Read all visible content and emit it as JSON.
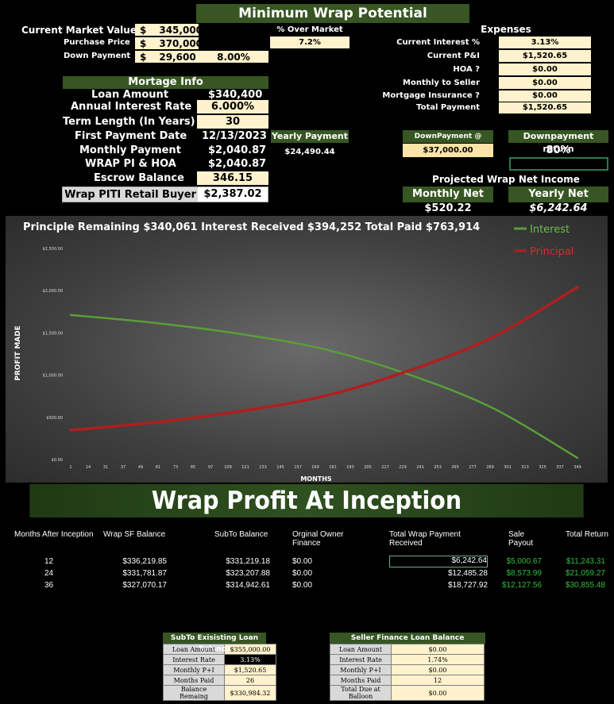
{
  "title": "Minimum Wrap Potential",
  "top": {
    "rows": [
      {
        "label": "Current Market Value",
        "cur": "$",
        "value": "345,000"
      },
      {
        "label": "Purchase Price",
        "cur": "$",
        "value": "370,000"
      },
      {
        "label": "Down Payment",
        "cur": "$",
        "value": "29,600",
        "extra": "8.00%"
      }
    ],
    "over_market_label": "% Over Market",
    "over_market_value": "7.2%"
  },
  "expenses": {
    "title": "Expenses",
    "rows": [
      {
        "label": "Current Interest %",
        "value": "3.13%"
      },
      {
        "label": "Current P&I",
        "value": "$1,520.65"
      },
      {
        "label": "HOA ?",
        "value": "$0.00"
      },
      {
        "label": "Monthly to Seller",
        "value": "$0.00"
      },
      {
        "label": "Mortgage Insurance ?",
        "value": "$0.00"
      },
      {
        "label": "Total Payment",
        "value": "$1,520.65"
      }
    ]
  },
  "mortgage": {
    "title": "Mortage Info",
    "rows": [
      {
        "label": "Loan Amount",
        "value": "$340,400"
      },
      {
        "label": "Annual Interest Rate",
        "value": "6.000%"
      },
      {
        "label": "Term Length (In Years)",
        "value": "30"
      },
      {
        "label": "First Payment Date",
        "value": "12/13/2023"
      },
      {
        "label": "Monthly Payment",
        "value": "$2,040.87"
      },
      {
        "label": "WRAP PI & HOA",
        "value": "$2,040.87"
      },
      {
        "label": "Escrow Balance",
        "value": "346.15"
      },
      {
        "label": "Wrap PITI Retail Buyer",
        "value": "$2,387.02"
      }
    ],
    "yearly_payment_label": "Yearly Payment",
    "yearly_payment_value": "$24,490.44"
  },
  "downpayment": {
    "closing_label": "DownPayment @ Closing",
    "closing_value": "$37,000.00",
    "return_label": "Downpayment return",
    "return_value": "80%"
  },
  "projected": {
    "title": "Projected Wrap Net Income",
    "monthly_label": "Monthly Net",
    "monthly_value": "$520.22",
    "yearly_label": "Yearly Net",
    "yearly_value": "$6,242.64"
  },
  "chart_data": {
    "type": "line",
    "title": "Principle Remaining $340,061 Interest Received $394,252 Total Paid $763,914",
    "xlabel": "MONTHS",
    "ylabel": "PROFIT MADE",
    "x_ticks": [
      "1",
      "14",
      "31",
      "37",
      "49",
      "61",
      "73",
      "85",
      "97",
      "109",
      "121",
      "133",
      "145",
      "157",
      "169",
      "181",
      "193",
      "205",
      "217",
      "229",
      "241",
      "253",
      "265",
      "277",
      "289",
      "301",
      "313",
      "325",
      "337",
      "349"
    ],
    "y_ticks": [
      "$0.00",
      "$500.00",
      "$1,000.00",
      "$1,500.00",
      "$2,000.00",
      "$2,500.00"
    ],
    "ylim": [
      0,
      2500
    ],
    "xlim": [
      1,
      360
    ],
    "legend_position": "top-right",
    "series": [
      {
        "name": "Interest",
        "color": "#5a9e3a",
        "x": [
          1,
          60,
          120,
          180,
          240,
          300,
          360
        ],
        "values": [
          1702,
          1610,
          1480,
          1300,
          1000,
          600,
          10
        ]
      },
      {
        "name": "Principal",
        "color": "#b01e1e",
        "x": [
          1,
          60,
          120,
          180,
          240,
          300,
          360
        ],
        "values": [
          338,
          430,
          560,
          740,
          1040,
          1440,
          2030
        ]
      }
    ]
  },
  "banner": "Wrap Profit At Inception",
  "profit_table": {
    "headers": [
      "Months After Inception",
      "Wrap SF Balance",
      "SubTo Balance",
      "Orginal Owner Finance",
      "Total Wrap Payment Received",
      "Sale Payout",
      "Total Return"
    ],
    "rows": [
      [
        "12",
        "$336,219.85",
        "$331,219.18",
        "$0.00",
        "$6,242.64",
        "$5,000.67",
        "$11,243.31"
      ],
      [
        "24",
        "$331,781.87",
        "$323,207.88",
        "$0.00",
        "$12,485.28",
        "$8,573.99",
        "$21,059.27"
      ],
      [
        "36",
        "$327,070.17",
        "$314,942.61",
        "$0.00",
        "$18,727.92",
        "$12,127.56",
        "$30,855.48"
      ]
    ]
  },
  "subto": {
    "title": "SubTo Exisisting Loan Balance",
    "rows": [
      {
        "label": "Loan Amount",
        "value": "$355,000.00"
      },
      {
        "label": "Interest Rate",
        "value": "3.13%"
      },
      {
        "label": "Monthly P+I",
        "value": "$1,520.65"
      },
      {
        "label": "Months Paid",
        "value": "26"
      },
      {
        "label": "Balance Remaing",
        "value": "$330,984.32"
      }
    ]
  },
  "seller": {
    "title": "Seller Finance Loan Balance",
    "rows": [
      {
        "label": "Loan Amount",
        "value": "$0.00"
      },
      {
        "label": "Interest Rate",
        "value": "1.74%"
      },
      {
        "label": "Monthly P+I",
        "value": "$0.00"
      },
      {
        "label": "Months Paid",
        "value": "12"
      },
      {
        "label": "Total Due at Balloon",
        "value": "$0.00"
      }
    ]
  }
}
